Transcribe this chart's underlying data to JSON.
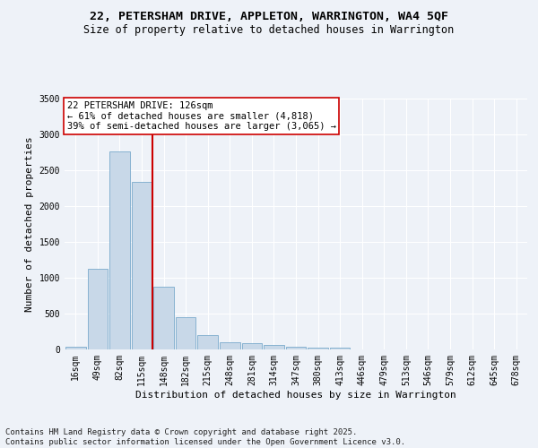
{
  "title_line1": "22, PETERSHAM DRIVE, APPLETON, WARRINGTON, WA4 5QF",
  "title_line2": "Size of property relative to detached houses in Warrington",
  "xlabel": "Distribution of detached houses by size in Warrington",
  "ylabel": "Number of detached properties",
  "bar_labels": [
    "16sqm",
    "49sqm",
    "82sqm",
    "115sqm",
    "148sqm",
    "182sqm",
    "215sqm",
    "248sqm",
    "281sqm",
    "314sqm",
    "347sqm",
    "380sqm",
    "413sqm",
    "446sqm",
    "479sqm",
    "513sqm",
    "546sqm",
    "579sqm",
    "612sqm",
    "645sqm",
    "678sqm"
  ],
  "bar_values": [
    40,
    1120,
    2760,
    2340,
    880,
    450,
    200,
    105,
    90,
    60,
    35,
    25,
    20,
    5,
    5,
    3,
    2,
    1,
    1,
    1,
    1
  ],
  "bar_color": "#c8d8e8",
  "bar_edge_color": "#7aaacc",
  "background_color": "#eef2f8",
  "grid_color": "#ffffff",
  "vline_color": "#cc0000",
  "vline_position": 3.5,
  "annotation_title": "22 PETERSHAM DRIVE: 126sqm",
  "annotation_line2": "← 61% of detached houses are smaller (4,818)",
  "annotation_line3": "39% of semi-detached houses are larger (3,065) →",
  "annotation_box_color": "#ffffff",
  "annotation_box_edge": "#cc0000",
  "ylim": [
    0,
    3500
  ],
  "yticks": [
    0,
    500,
    1000,
    1500,
    2000,
    2500,
    3000,
    3500
  ],
  "footnote_line1": "Contains HM Land Registry data © Crown copyright and database right 2025.",
  "footnote_line2": "Contains public sector information licensed under the Open Government Licence v3.0.",
  "title_fontsize": 9.5,
  "subtitle_fontsize": 8.5,
  "axis_label_fontsize": 8,
  "tick_fontsize": 7,
  "annotation_fontsize": 7.5,
  "footnote_fontsize": 6.5
}
